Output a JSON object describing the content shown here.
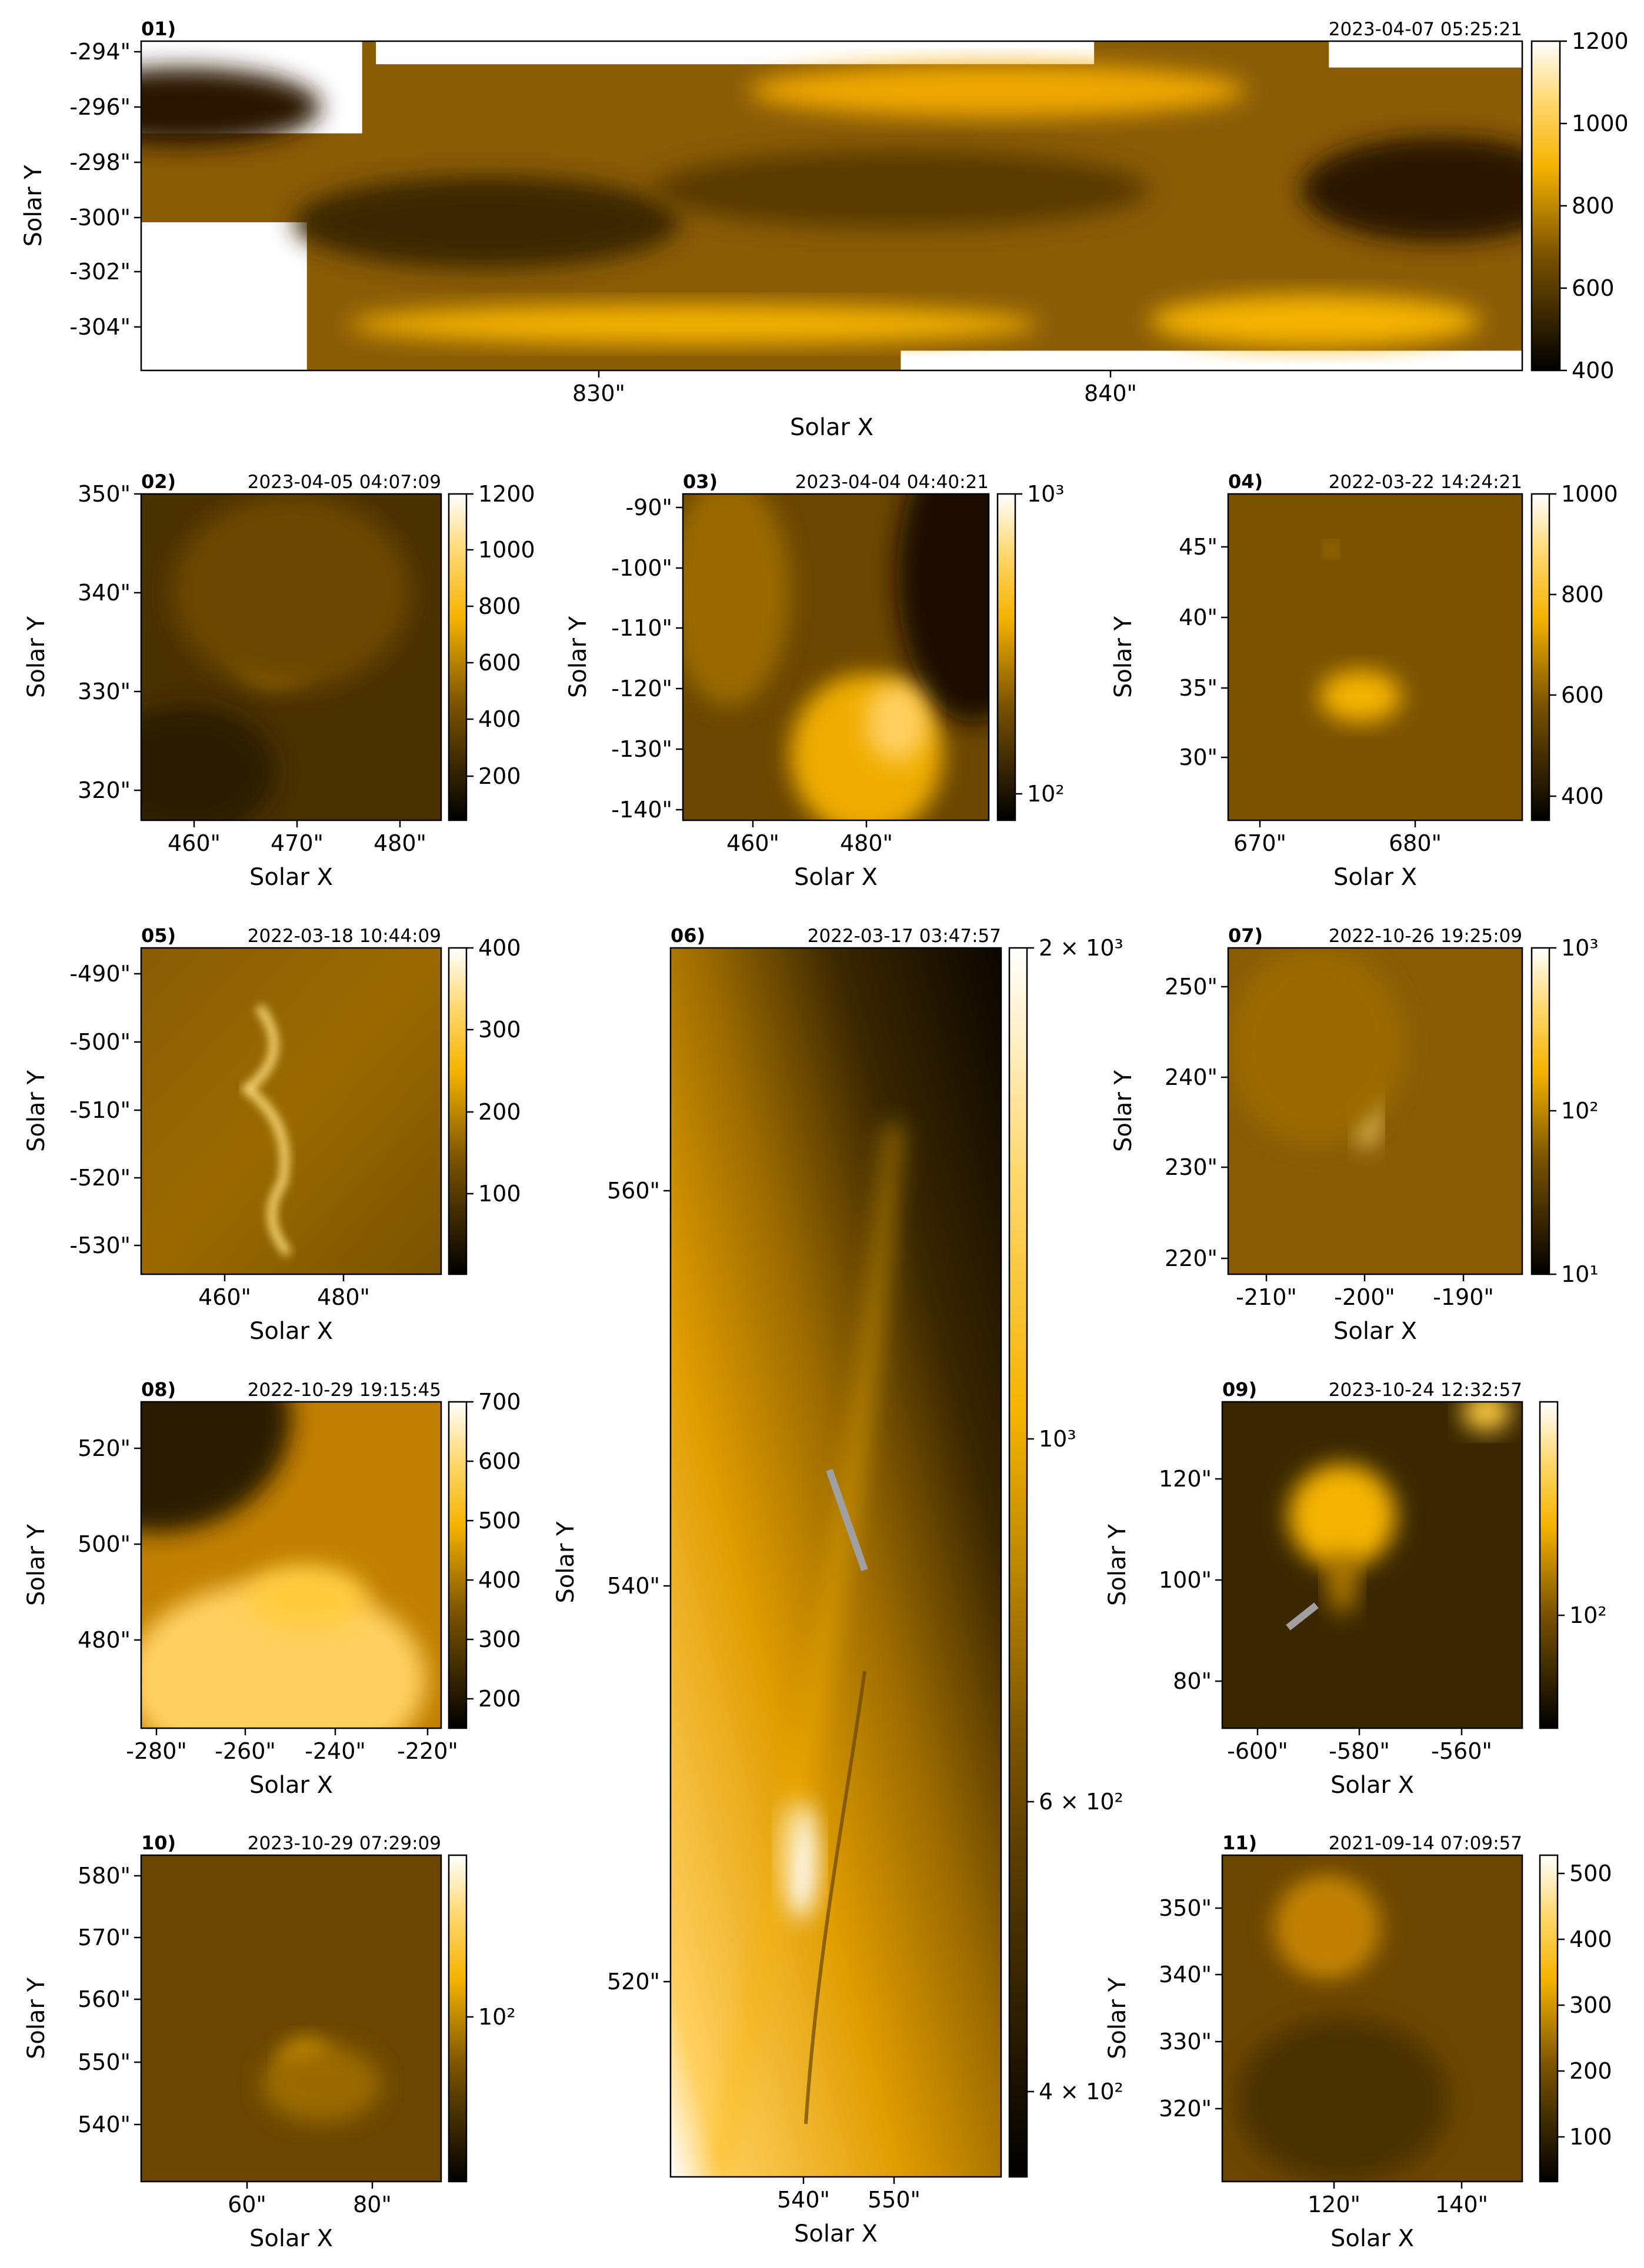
{
  "figure": {
    "panels": [
      {
        "id": "01)",
        "timestamp": "2023-04-07  05:25:21",
        "xlabel": "Solar X",
        "ylabel": "Solar Y",
        "xticks": [
          "830\"",
          "840\""
        ],
        "yticks": [
          "-294\"",
          "-296\"",
          "-298\"",
          "-300\"",
          "-302\"",
          "-304\""
        ],
        "cbar_ticks": [
          "1200",
          "1000",
          "800",
          "600",
          "400"
        ],
        "cbar_scale": "linear"
      },
      {
        "id": "02)",
        "timestamp": "2023-04-05  04:07:09",
        "xlabel": "Solar X",
        "ylabel": "Solar Y",
        "xticks": [
          "460\"",
          "470\"",
          "480\""
        ],
        "yticks": [
          "350\"",
          "340\"",
          "330\"",
          "320\""
        ],
        "cbar_ticks": [
          "1200",
          "1000",
          "800",
          "600",
          "400",
          "200"
        ],
        "cbar_scale": "linear"
      },
      {
        "id": "03)",
        "timestamp": "2023-04-04  04:40:21",
        "xlabel": "Solar X",
        "ylabel": "Solar Y",
        "xticks": [
          "460\"",
          "480\""
        ],
        "yticks": [
          "-90\"",
          "-100\"",
          "-110\"",
          "-120\"",
          "-130\"",
          "-140\""
        ],
        "cbar_ticks": [
          "10³",
          "10²"
        ],
        "cbar_scale": "log"
      },
      {
        "id": "04)",
        "timestamp": "2022-03-22  14:24:21",
        "xlabel": "Solar X",
        "ylabel": "Solar Y",
        "xticks": [
          "670\"",
          "680\""
        ],
        "yticks": [
          "45\"",
          "40\"",
          "35\"",
          "30\""
        ],
        "cbar_ticks": [
          "1000",
          "800",
          "600",
          "400"
        ],
        "cbar_scale": "linear"
      },
      {
        "id": "05)",
        "timestamp": "2022-03-18  10:44:09",
        "xlabel": "Solar X",
        "ylabel": "Solar Y",
        "xticks": [
          "460\"",
          "480\""
        ],
        "yticks": [
          "-490\"",
          "-500\"",
          "-510\"",
          "-520\"",
          "-530\""
        ],
        "cbar_ticks": [
          "400",
          "300",
          "200",
          "100"
        ],
        "cbar_scale": "linear"
      },
      {
        "id": "06)",
        "timestamp": "2022-03-17  03:47:57",
        "xlabel": "Solar X",
        "ylabel": "Solar Y",
        "xticks": [
          "540\"",
          "550\""
        ],
        "yticks": [
          "560\"",
          "540\"",
          "520\""
        ],
        "cbar_ticks": [
          "2 × 10³",
          "10³",
          "6 × 10²",
          "4 × 10²"
        ],
        "cbar_scale": "log"
      },
      {
        "id": "07)",
        "timestamp": "2022-10-26  19:25:09",
        "xlabel": "Solar X",
        "ylabel": "Solar Y",
        "xticks": [
          "-210\"",
          "-200\"",
          "-190\""
        ],
        "yticks": [
          "250\"",
          "240\"",
          "230\"",
          "220\""
        ],
        "cbar_ticks": [
          "10³",
          "10²",
          "10¹"
        ],
        "cbar_scale": "log"
      },
      {
        "id": "08)",
        "timestamp": "2022-10-29  19:15:45",
        "xlabel": "Solar X",
        "ylabel": "Solar Y",
        "xticks": [
          "-280\"",
          "-260\"",
          "-240\"",
          "-220\""
        ],
        "yticks": [
          "520\"",
          "500\"",
          "480\""
        ],
        "cbar_ticks": [
          "700",
          "600",
          "500",
          "400",
          "300",
          "200"
        ],
        "cbar_scale": "linear"
      },
      {
        "id": "09)",
        "timestamp": "2023-10-24  12:32:57",
        "xlabel": "Solar X",
        "ylabel": "Solar Y",
        "xticks": [
          "-600\"",
          "-580\"",
          "-560\""
        ],
        "yticks": [
          "120\"",
          "100\"",
          "80\""
        ],
        "cbar_ticks": [
          "10²"
        ],
        "cbar_scale": "log"
      },
      {
        "id": "10)",
        "timestamp": "2023-10-29  07:29:09",
        "xlabel": "Solar X",
        "ylabel": "Solar Y",
        "xticks": [
          "60\"",
          "80\""
        ],
        "yticks": [
          "580\"",
          "570\"",
          "560\"",
          "550\"",
          "540\""
        ],
        "cbar_ticks": [
          "10²"
        ],
        "cbar_scale": "log"
      },
      {
        "id": "11)",
        "timestamp": "2021-09-14  07:09:57",
        "xlabel": "Solar X",
        "ylabel": "Solar Y",
        "xticks": [
          "120\"",
          "140\""
        ],
        "yticks": [
          "350\"",
          "340\"",
          "330\"",
          "320\""
        ],
        "cbar_ticks": [
          "500",
          "400",
          "300",
          "200",
          "100"
        ],
        "cbar_scale": "linear"
      }
    ],
    "colors": {
      "cmap_dark": "#000000",
      "cmap_mid": "#7a5200",
      "cmap_gold": "#f5b300",
      "cmap_light": "#ffffff",
      "arrow": "#a0a0a0"
    }
  }
}
